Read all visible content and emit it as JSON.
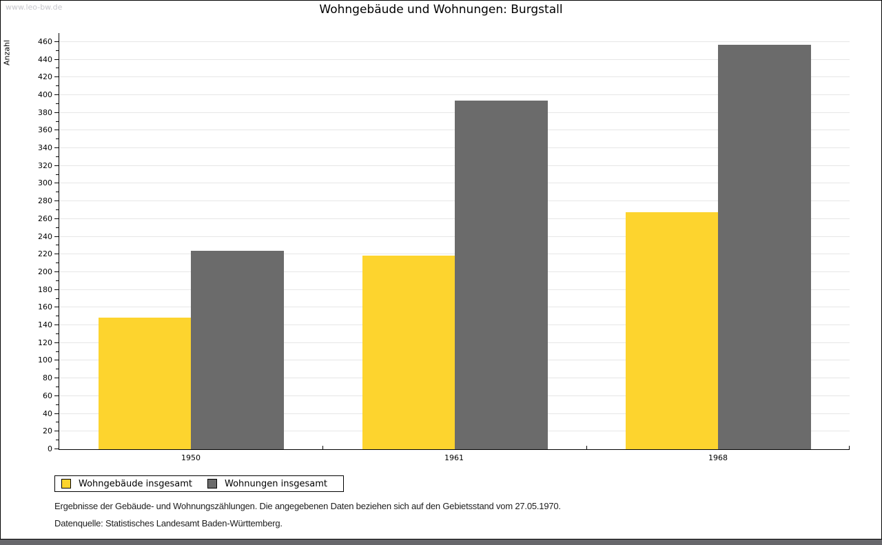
{
  "watermark": "www.leo-bw.de",
  "title": "Wohngebäude und Wohnungen: Burgstall",
  "chart_data": {
    "type": "bar",
    "title": "Wohngebäude und Wohnungen: Burgstall",
    "categories": [
      "1950",
      "1961",
      "1968"
    ],
    "series": [
      {
        "name": "Wohngebäude insgesamt",
        "color": "#FDD42E",
        "values": [
          149,
          219,
          268
        ]
      },
      {
        "name": "Wohnungen insgesamt",
        "color": "#6B6B6B",
        "values": [
          224,
          394,
          457
        ]
      }
    ],
    "xlabel": "",
    "ylabel": "Anzahl",
    "ylim": [
      0,
      470
    ],
    "ytick_step": 20,
    "ytick_max": 460,
    "grid": true,
    "legend_position": "bottom-left"
  },
  "legend": {
    "items": [
      "Wohngebäude insgesamt",
      "Wohnungen insgesamt"
    ]
  },
  "footer": {
    "line1": "Ergebnisse der Gebäude- und Wohnungszählungen. Die angegebenen Daten beziehen sich auf den Gebietsstand vom 27.05.1970.",
    "line2": "Datenquelle: Statistisches Landesamt Baden-Württemberg."
  },
  "colors": {
    "bar_yellow": "#FDD42E",
    "bar_gray": "#6B6B6B",
    "gridline": "#e6e6e6",
    "watermark_text": "#c7c7cd",
    "bottom_strip": "#67676b"
  }
}
